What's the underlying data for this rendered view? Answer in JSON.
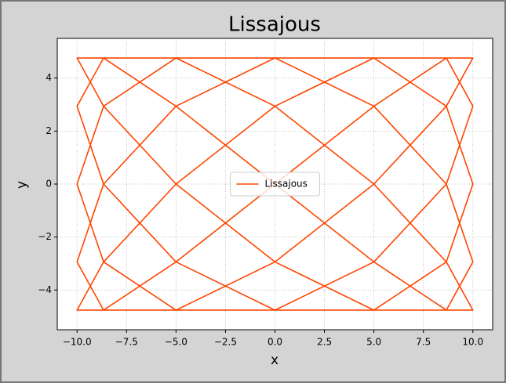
{
  "chart_data": {
    "type": "line",
    "title": "Lissajous",
    "x_label": "x",
    "y_label": "y",
    "x": [
      0,
      5,
      8.66,
      10,
      8.66,
      5,
      0,
      -5,
      -8.66,
      -10,
      -8.66,
      -5,
      0,
      5,
      8.66,
      10,
      8.66,
      5,
      0,
      -5,
      -8.66,
      -10,
      -8.66,
      -5,
      0,
      5,
      8.66,
      10,
      8.66,
      5,
      0,
      -5,
      -8.66,
      -10,
      -8.66,
      -5,
      0,
      5,
      8.66,
      10,
      8.66,
      5,
      0,
      -5,
      -8.66,
      -10,
      -8.66,
      -5,
      0,
      5,
      8.66,
      10,
      8.66,
      5,
      0,
      -5,
      -8.66,
      -10,
      -8.66,
      -5,
      0
    ],
    "series": [
      {
        "name": "Lissajous",
        "color": "#ff4500",
        "values": [
          0,
          2.94,
          4.76,
          4.76,
          2.94,
          0,
          -2.94,
          -4.76,
          -4.76,
          -2.94,
          0,
          2.94,
          4.76,
          4.76,
          2.94,
          0,
          -2.94,
          -4.76,
          -4.76,
          -2.94,
          0,
          2.94,
          4.76,
          4.76,
          2.94,
          0,
          -2.94,
          -4.76,
          -4.76,
          -2.94,
          0,
          2.94,
          4.76,
          4.76,
          2.94,
          0,
          -2.94,
          -4.76,
          -4.76,
          -2.94,
          0,
          2.94,
          4.76,
          4.76,
          2.94,
          0,
          -2.94,
          -4.76,
          -4.76,
          -2.94,
          0,
          2.94,
          4.76,
          4.76,
          2.94,
          0,
          -2.94,
          -4.76,
          -4.76,
          -2.94,
          0
        ]
      }
    ],
    "xlim": [
      -11,
      11
    ],
    "ylim": [
      -5.5,
      5.5
    ],
    "xticks": [
      {
        "value": -10,
        "label": "−10.0"
      },
      {
        "value": -7.5,
        "label": "−7.5"
      },
      {
        "value": -5,
        "label": "−5.0"
      },
      {
        "value": -2.5,
        "label": "−2.5"
      },
      {
        "value": 0,
        "label": "0.0"
      },
      {
        "value": 2.5,
        "label": "2.5"
      },
      {
        "value": 5,
        "label": "5.0"
      },
      {
        "value": 7.5,
        "label": "7.5"
      },
      {
        "value": 10,
        "label": "10.0"
      }
    ],
    "yticks": [
      {
        "value": -4,
        "label": "−4"
      },
      {
        "value": -2,
        "label": "−2"
      },
      0,
      2,
      4
    ],
    "grid": true,
    "legend": "center"
  }
}
